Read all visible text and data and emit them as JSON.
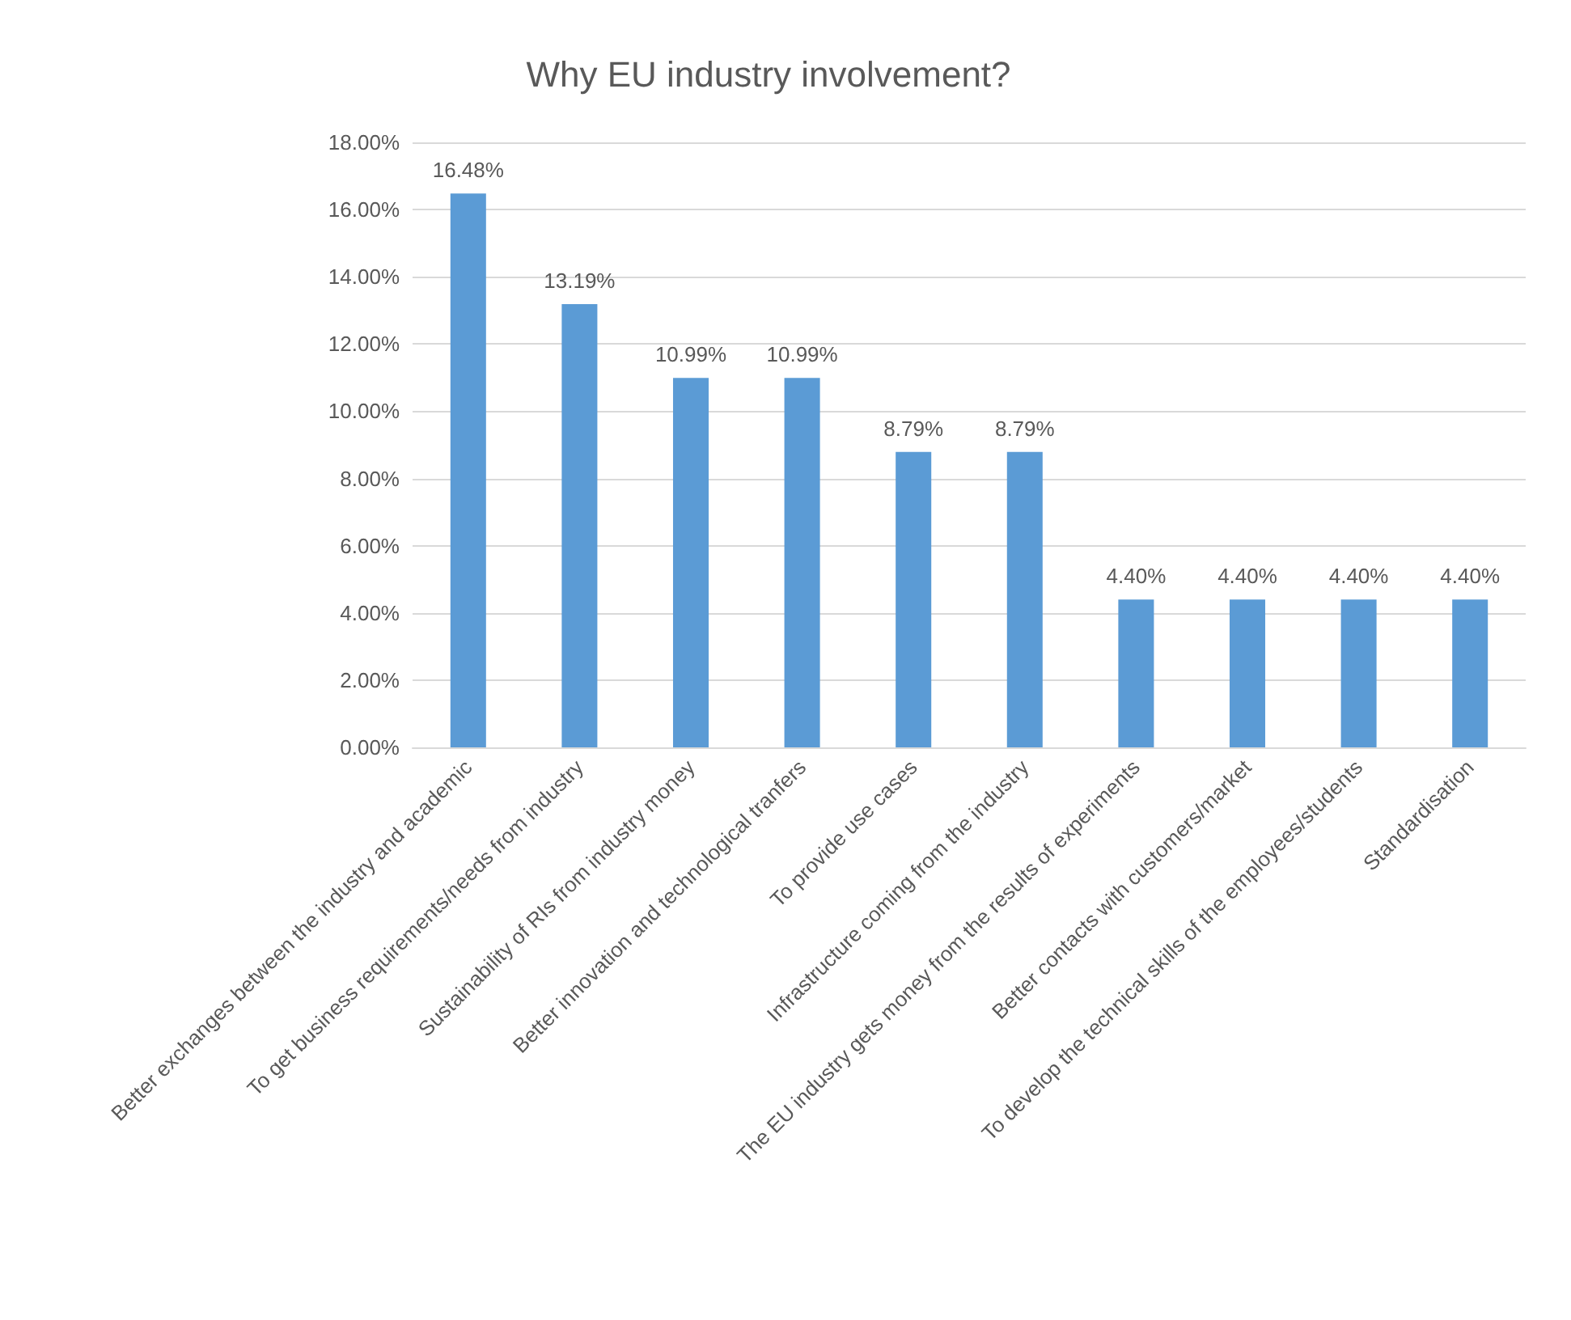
{
  "chart_data": {
    "type": "bar",
    "title": "Why EU industry involvement?",
    "categories": [
      "Better exchanges between the industry and academic",
      "To get business requirements/needs from industry",
      "Sustainability of RIs from industry money",
      "Better innovation and technological tranfers",
      "To provide use cases",
      "Infrastructure coming from the industry",
      "The EU industry gets money from the results of experiments",
      "Better contacts with customers/market",
      "To develop the technical skills of the employees/students",
      "Standardisation"
    ],
    "values": [
      16.48,
      13.19,
      10.99,
      10.99,
      8.79,
      8.79,
      4.4,
      4.4,
      4.4,
      4.4
    ],
    "value_labels": [
      "16.48%",
      "13.19%",
      "10.99%",
      "10.99%",
      "8.79%",
      "8.79%",
      "4.40%",
      "4.40%",
      "4.40%",
      "4.40%"
    ],
    "color": "#5b9bd5",
    "ylim": [
      0,
      18
    ],
    "yticks": [
      {
        "value": 0,
        "label": "0.00%"
      },
      {
        "value": 2,
        "label": "2.00%"
      },
      {
        "value": 4,
        "label": "4.00%"
      },
      {
        "value": 6,
        "label": "6.00%"
      },
      {
        "value": 8,
        "label": "8.00%"
      },
      {
        "value": 10,
        "label": "10.00%"
      },
      {
        "value": 12,
        "label": "12.00%"
      },
      {
        "value": 14,
        "label": "14.00%"
      },
      {
        "value": 16,
        "label": "16.00%"
      },
      {
        "value": 18,
        "label": "18.00%"
      }
    ],
    "grid": "y"
  }
}
